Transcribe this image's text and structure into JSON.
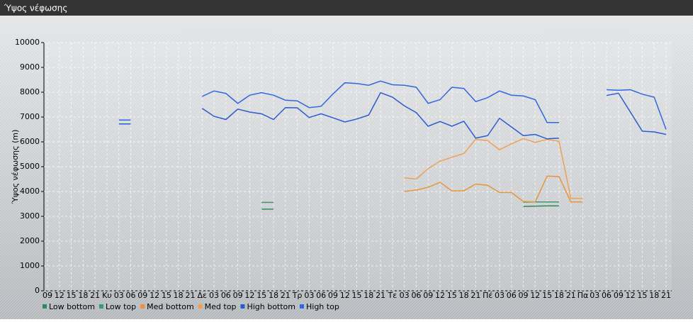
{
  "window_title": "Ύψος νέφωσης",
  "chart_data": {
    "type": "line",
    "y_label": "Ύψος νέφωσης (m)",
    "categories": [
      "09",
      "12",
      "15",
      "18",
      "21",
      "Κυ",
      "03",
      "06",
      "09",
      "12",
      "15",
      "18",
      "21",
      "Δε",
      "03",
      "06",
      "09",
      "12",
      "15",
      "18",
      "21",
      "Τρ",
      "03",
      "06",
      "09",
      "12",
      "15",
      "18",
      "21",
      "Τε",
      "03",
      "06",
      "09",
      "12",
      "15",
      "18",
      "21",
      "Πέ",
      "03",
      "06",
      "09",
      "12",
      "15",
      "18",
      "21",
      "Πα",
      "03",
      "06",
      "09",
      "12",
      "15",
      "18",
      "21"
    ],
    "ylim": [
      0,
      10000
    ],
    "yticks": [
      0,
      1000,
      2000,
      3000,
      4000,
      5000,
      6000,
      7000,
      8000,
      9000,
      10000
    ],
    "grid": true,
    "series": [
      {
        "name": "Low bottom",
        "color": "#2e8b57",
        "values": [
          null,
          null,
          null,
          null,
          null,
          null,
          null,
          null,
          null,
          null,
          null,
          null,
          null,
          null,
          null,
          null,
          null,
          null,
          3290,
          null,
          null,
          null,
          null,
          null,
          null,
          null,
          null,
          null,
          null,
          null,
          null,
          null,
          null,
          null,
          null,
          null,
          null,
          null,
          null,
          null,
          3400,
          3410,
          3420,
          3420,
          null,
          null,
          null,
          null,
          null,
          null,
          null,
          null,
          null
        ]
      },
      {
        "name": "Low top",
        "color": "#3a9a6a",
        "values": [
          null,
          null,
          null,
          null,
          null,
          null,
          null,
          null,
          null,
          null,
          null,
          null,
          null,
          null,
          null,
          null,
          null,
          null,
          3560,
          null,
          null,
          null,
          null,
          null,
          null,
          null,
          null,
          null,
          null,
          null,
          null,
          null,
          null,
          null,
          null,
          null,
          null,
          null,
          null,
          null,
          3570,
          3580,
          3580,
          3580,
          null,
          null,
          null,
          null,
          null,
          null,
          null,
          null,
          null
        ]
      },
      {
        "name": "Med bottom",
        "color": "#e8943a",
        "values": [
          null,
          null,
          null,
          null,
          null,
          null,
          null,
          null,
          null,
          null,
          null,
          null,
          null,
          null,
          null,
          null,
          null,
          null,
          null,
          null,
          null,
          null,
          null,
          null,
          null,
          null,
          null,
          null,
          null,
          null,
          4000,
          4060,
          4170,
          4370,
          4020,
          4030,
          4300,
          4250,
          3960,
          3960,
          3600,
          3580,
          4620,
          4600,
          3580,
          3580,
          null,
          null,
          null,
          null,
          null,
          null,
          null
        ]
      },
      {
        "name": "Med top",
        "color": "#f0a050",
        "values": [
          null,
          null,
          null,
          null,
          null,
          null,
          null,
          null,
          null,
          null,
          null,
          null,
          null,
          null,
          null,
          null,
          null,
          null,
          null,
          null,
          null,
          null,
          null,
          null,
          null,
          null,
          null,
          null,
          null,
          null,
          4550,
          4500,
          4920,
          5220,
          5380,
          5530,
          6100,
          6050,
          5680,
          5920,
          6130,
          5980,
          6100,
          6020,
          3720,
          3720,
          null,
          null,
          null,
          null,
          null,
          null,
          null
        ]
      },
      {
        "name": "High bottom",
        "color": "#2a5bd0",
        "values": [
          null,
          null,
          null,
          null,
          null,
          null,
          6720,
          null,
          null,
          null,
          null,
          null,
          null,
          7350,
          7030,
          6900,
          7320,
          7200,
          7130,
          6900,
          7380,
          7370,
          6980,
          7130,
          6970,
          6800,
          6920,
          7080,
          7980,
          7800,
          7450,
          7180,
          6630,
          6820,
          6630,
          6830,
          6150,
          6250,
          6950,
          6600,
          6250,
          6300,
          6120,
          6150,
          null,
          null,
          null,
          7870,
          7960,
          7200,
          6430,
          6400,
          6300
        ]
      },
      {
        "name": "High top",
        "color": "#3068e0",
        "values": [
          null,
          null,
          null,
          null,
          null,
          null,
          6880,
          null,
          null,
          null,
          null,
          null,
          null,
          7830,
          8050,
          7950,
          7550,
          7880,
          7980,
          7880,
          7680,
          7650,
          7380,
          7430,
          7930,
          8380,
          8350,
          8280,
          8450,
          8300,
          8280,
          8200,
          7550,
          7700,
          8200,
          8150,
          7620,
          7780,
          8050,
          7880,
          7850,
          7700,
          6780,
          6780,
          null,
          null,
          null,
          8100,
          8080,
          8100,
          7920,
          7800,
          6500
        ]
      }
    ]
  }
}
